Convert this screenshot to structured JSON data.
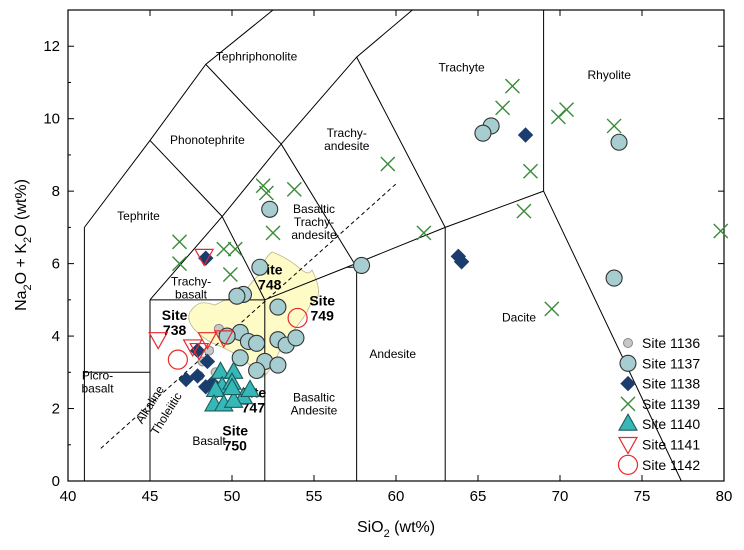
{
  "chart_data": {
    "type": "scatter",
    "xlabel_main": "SiO",
    "xlabel_sub": "2",
    "xlabel_rest": " (wt%)",
    "ylabel_a": "Na",
    "ylabel_a_sub": "2",
    "ylabel_b": "O + K",
    "ylabel_b_sub": "2",
    "ylabel_c": "O (wt%)",
    "xlim": [
      40,
      80
    ],
    "ylim": [
      0,
      13
    ],
    "xticks": [
      40,
      45,
      50,
      55,
      60,
      65,
      70,
      75,
      80
    ],
    "yticks": [
      0,
      2,
      4,
      6,
      8,
      10,
      12
    ],
    "field_labels": [
      {
        "lines": [
          "Tephriphonolite"
        ],
        "x": 51.5,
        "y": 11.6
      },
      {
        "lines": [
          "Trachyte"
        ],
        "x": 64,
        "y": 11.3
      },
      {
        "lines": [
          "Rhyolite"
        ],
        "x": 73,
        "y": 11.1
      },
      {
        "lines": [
          "Phonotephrite"
        ],
        "x": 48.5,
        "y": 9.3
      },
      {
        "lines": [
          "Trachy-",
          "andesite"
        ],
        "x": 57,
        "y": 9.5
      },
      {
        "lines": [
          "Tephrite"
        ],
        "x": 44.3,
        "y": 7.2
      },
      {
        "lines": [
          "Basaltic",
          "Trachy-",
          "andesite"
        ],
        "x": 55,
        "y": 7.4
      },
      {
        "lines": [
          "Trachy-",
          "basalt"
        ],
        "x": 47.5,
        "y": 5.4
      },
      {
        "lines": [
          "Dacite"
        ],
        "x": 67.5,
        "y": 4.4
      },
      {
        "lines": [
          "Andesite"
        ],
        "x": 59.8,
        "y": 3.4
      },
      {
        "lines": [
          "Picro-",
          "basalt"
        ],
        "x": 41.8,
        "y": 2.8
      },
      {
        "lines": [
          "Basaltic",
          "Andesite"
        ],
        "x": 55,
        "y": 2.2
      },
      {
        "lines": [
          "Basalt"
        ],
        "x": 48.6,
        "y": 1.0
      }
    ],
    "site_labels": [
      {
        "lines": [
          "Site",
          "748"
        ],
        "x": 52.3,
        "y": 5.7
      },
      {
        "lines": [
          "Site",
          "749"
        ],
        "x": 55.5,
        "y": 4.85
      },
      {
        "lines": [
          "Site",
          "738"
        ],
        "x": 46.5,
        "y": 4.45
      },
      {
        "lines": [
          "Site",
          "747"
        ],
        "x": 51.3,
        "y": 2.3
      },
      {
        "lines": [
          "Site",
          "750"
        ],
        "x": 50.2,
        "y": 1.25
      }
    ],
    "divider_labels": [
      {
        "text": "Alkaline",
        "x": 45.2,
        "y": 2.05
      },
      {
        "text": "Tholeiitic",
        "x": 46.2,
        "y": 1.8
      }
    ],
    "legend_position": "bottom-right",
    "series": [
      {
        "name": "Site 1136",
        "marker": "circle-small",
        "fill": "#c8c8c8",
        "stroke": "#8a8a8a",
        "points": [
          [
            49.2,
            4.2
          ],
          [
            48.6,
            3.6
          ],
          [
            48.2,
            3.3
          ],
          [
            49.0,
            3.0
          ],
          [
            48.0,
            2.9
          ]
        ]
      },
      {
        "name": "Site 1137",
        "marker": "circle",
        "fill": "#a6cdd0",
        "stroke": "#333333",
        "points": [
          [
            52.3,
            7.5
          ],
          [
            51.7,
            5.9
          ],
          [
            50.7,
            5.15
          ],
          [
            50.3,
            5.1
          ],
          [
            52.8,
            4.8
          ],
          [
            50.5,
            4.1
          ],
          [
            49.7,
            4.0
          ],
          [
            51.0,
            3.85
          ],
          [
            51.5,
            3.8
          ],
          [
            52.8,
            3.9
          ],
          [
            53.3,
            3.75
          ],
          [
            53.9,
            3.95
          ],
          [
            50.5,
            3.4
          ],
          [
            52.0,
            3.3
          ],
          [
            52.8,
            3.2
          ],
          [
            51.5,
            3.05
          ],
          [
            57.9,
            5.95
          ],
          [
            65.8,
            9.8
          ],
          [
            65.3,
            9.6
          ],
          [
            73.6,
            9.35
          ],
          [
            73.3,
            5.6
          ]
        ]
      },
      {
        "name": "Site 1138",
        "marker": "diamond",
        "fill": "#1b3d6e",
        "stroke": "#1b3d6e",
        "points": [
          [
            48.4,
            6.15
          ],
          [
            47.9,
            3.6
          ],
          [
            48.5,
            3.3
          ],
          [
            47.2,
            2.8
          ],
          [
            47.9,
            2.9
          ],
          [
            48.4,
            2.6
          ],
          [
            48.8,
            2.7
          ],
          [
            49.1,
            2.5
          ],
          [
            63.8,
            6.2
          ],
          [
            64.0,
            6.05
          ],
          [
            67.9,
            9.55
          ]
        ]
      },
      {
        "name": "Site 1139",
        "marker": "x",
        "fill": "none",
        "stroke": "#3a8a3a",
        "points": [
          [
            46.8,
            6.6
          ],
          [
            46.8,
            6.0
          ],
          [
            49.5,
            6.4
          ],
          [
            50.2,
            6.4
          ],
          [
            49.9,
            5.7
          ],
          [
            51.9,
            8.15
          ],
          [
            52.1,
            7.95
          ],
          [
            53.8,
            8.05
          ],
          [
            52.5,
            6.85
          ],
          [
            59.5,
            8.75
          ],
          [
            61.7,
            6.85
          ],
          [
            66.5,
            10.3
          ],
          [
            67.1,
            10.9
          ],
          [
            68.2,
            8.55
          ],
          [
            67.8,
            7.45
          ],
          [
            69.9,
            10.05
          ],
          [
            70.4,
            10.25
          ],
          [
            73.3,
            9.8
          ],
          [
            69.5,
            4.75
          ],
          [
            79.8,
            6.9
          ]
        ]
      },
      {
        "name": "Site 1140",
        "marker": "triangle",
        "fill": "#36b8b8",
        "stroke": "#1e5a5a",
        "points": [
          [
            49.3,
            3.0
          ],
          [
            50.1,
            3.0
          ],
          [
            49.4,
            2.6
          ],
          [
            49.0,
            2.5
          ],
          [
            50.0,
            2.7
          ],
          [
            50.7,
            2.3
          ],
          [
            48.9,
            2.1
          ],
          [
            49.5,
            2.1
          ],
          [
            50.1,
            2.2
          ],
          [
            51.1,
            2.5
          ],
          [
            50.0,
            2.55
          ]
        ]
      },
      {
        "name": "Site 1141",
        "marker": "triangle-down",
        "fill": "none",
        "stroke": "#e8282a",
        "points": [
          [
            45.5,
            3.9
          ],
          [
            47.6,
            3.7
          ],
          [
            48.0,
            3.6
          ],
          [
            48.5,
            3.9
          ],
          [
            49.5,
            3.95
          ],
          [
            48.3,
            6.2
          ]
        ]
      },
      {
        "name": "Site 1142",
        "marker": "circle-open",
        "fill": "none",
        "stroke": "#e8282a",
        "points": [
          [
            46.7,
            3.35
          ],
          [
            54.0,
            4.5
          ]
        ]
      }
    ]
  }
}
